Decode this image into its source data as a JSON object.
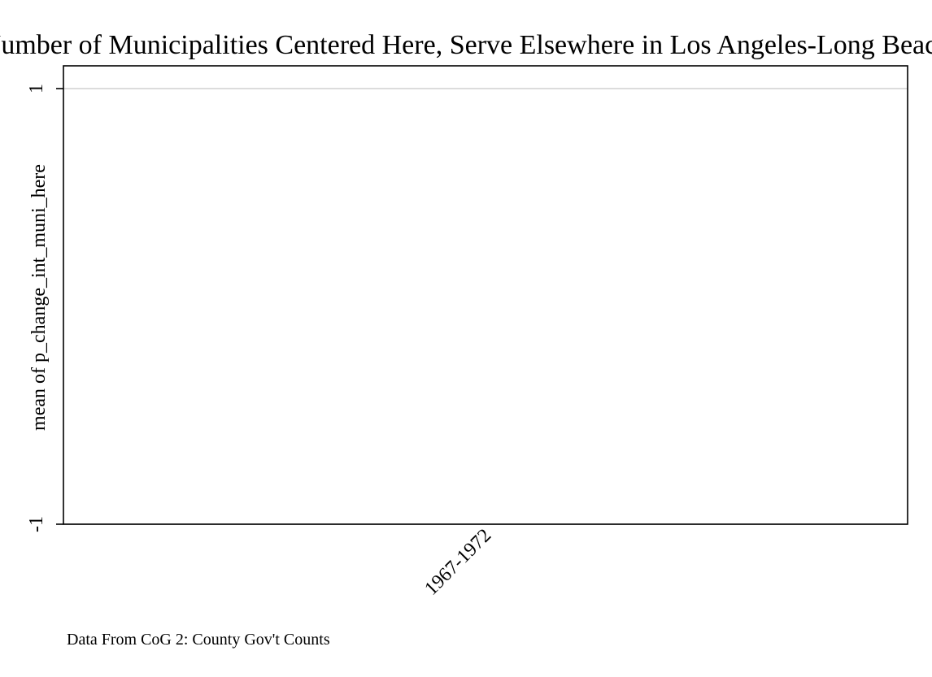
{
  "chart_data": {
    "type": "bar",
    "title": "Number of Municipalities Centered Here, Serve Elsewhere in Los Angeles-Long Beach",
    "xlabel": "",
    "ylabel": "mean of p_change_int_muni_here",
    "categories": [
      "1967-1972"
    ],
    "series": [
      {
        "values": [
          0
        ]
      }
    ],
    "ylim": [
      -1,
      1
    ],
    "yticks": [
      {
        "value": 1,
        "label": "1"
      },
      {
        "value": -1,
        "label": "-1"
      }
    ],
    "grid": true,
    "note": "Data From CoG 2: County Gov't Counts"
  },
  "colors": {
    "background": "#ffffff",
    "frame": "#000000",
    "gridline": "#dcdcdc",
    "text": "#000000"
  }
}
